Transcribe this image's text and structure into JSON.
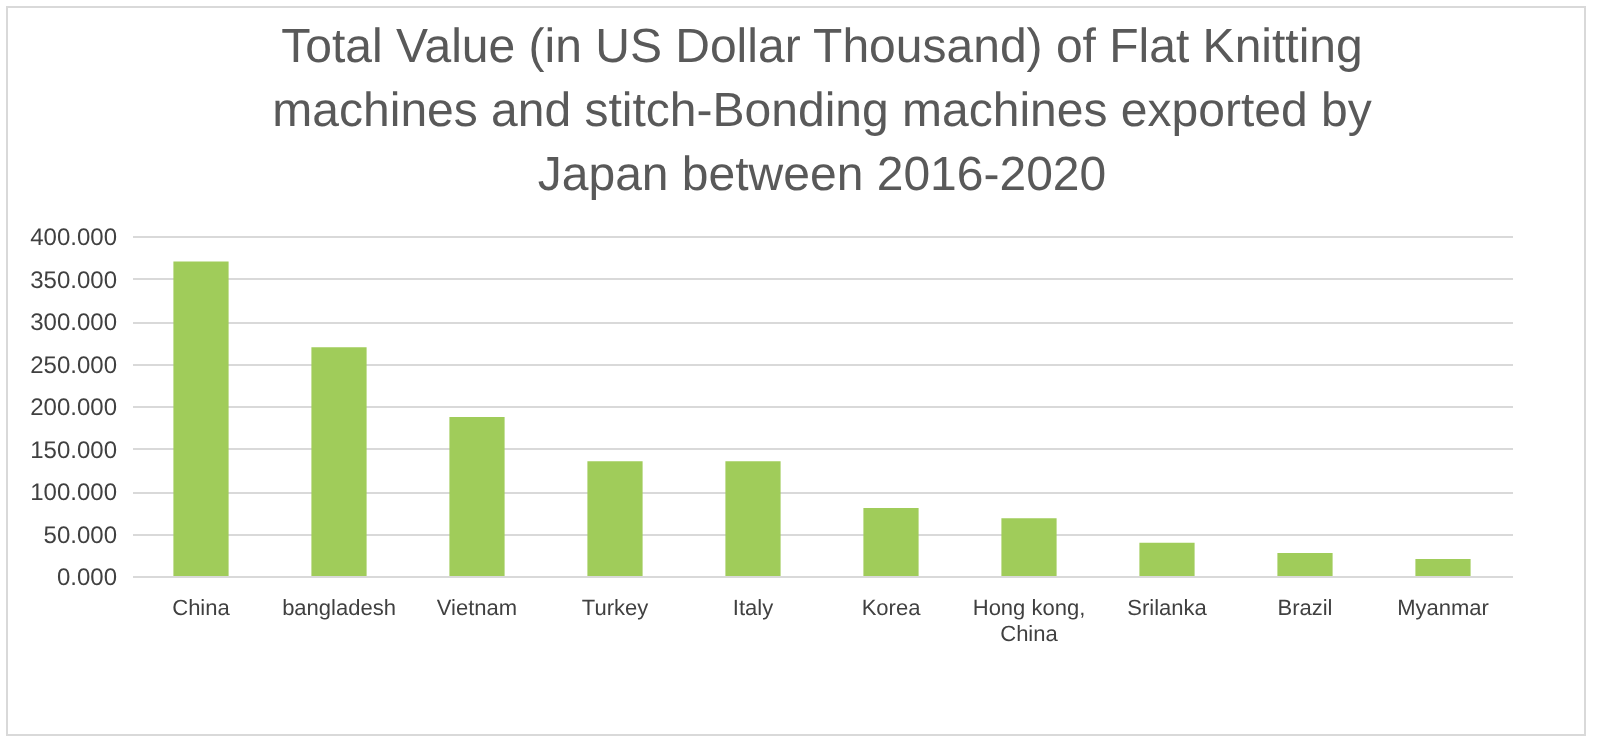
{
  "chart_data": {
    "type": "bar",
    "title": "Total Value (in US Dollar Thousand) of Flat Knitting machines and stitch-Bonding machines exported by Japan between 2016-2020",
    "categories": [
      "China",
      "bangladesh",
      "Vietnam",
      "Turkey",
      "Italy",
      "Korea",
      "Hong kong, China",
      "Srilanka",
      "Brazil",
      "Myanmar"
    ],
    "values": [
      370,
      269,
      187,
      135,
      135,
      80,
      68,
      39,
      27,
      20
    ],
    "color": "#a0cc5a",
    "ylim": [
      0,
      400
    ],
    "yticks": [
      {
        "value": 0,
        "label": "0.000"
      },
      {
        "value": 50,
        "label": "50.000"
      },
      {
        "value": 100,
        "label": "100.000"
      },
      {
        "value": 150,
        "label": "150.000"
      },
      {
        "value": 200,
        "label": "200.000"
      },
      {
        "value": 250,
        "label": "250.000"
      },
      {
        "value": 300,
        "label": "300.000"
      },
      {
        "value": 350,
        "label": "350.000"
      },
      {
        "value": 400,
        "label": "400.000"
      }
    ],
    "grid": "y"
  }
}
